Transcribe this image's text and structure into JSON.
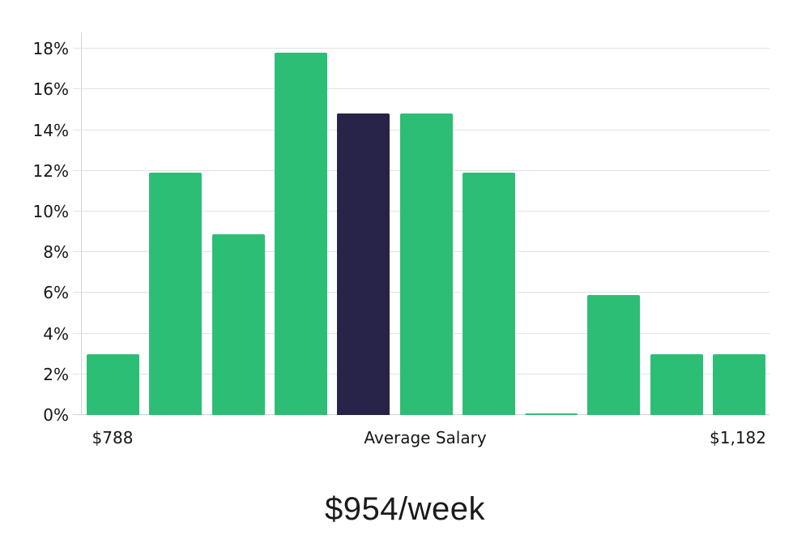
{
  "chart_data": {
    "type": "bar",
    "caption": "$954/week",
    "values": [
      3.0,
      11.9,
      8.9,
      17.8,
      14.8,
      14.8,
      11.9,
      0.1,
      5.9,
      3.0,
      3.0
    ],
    "highlight_index": 4,
    "y_ticks": [
      0,
      2,
      4,
      6,
      8,
      10,
      12,
      14,
      16,
      18
    ],
    "y_tick_labels": [
      "0%",
      "2%",
      "4%",
      "6%",
      "8%",
      "10%",
      "12%",
      "14%",
      "16%",
      "18%"
    ],
    "ylim": [
      0,
      18.8
    ],
    "grid": true,
    "legend": false,
    "x_labels": {
      "min": "$788",
      "center": "Average Salary",
      "max": "$1,182"
    },
    "colors": {
      "bar": "#2dbe76",
      "bar_highlight": "#282349",
      "gridline": "#e2e2e2",
      "axis_line": "#d4d4d4",
      "tick_text": "#161616",
      "caption_text": "#1b1b1b",
      "background": "#ffffff"
    }
  }
}
